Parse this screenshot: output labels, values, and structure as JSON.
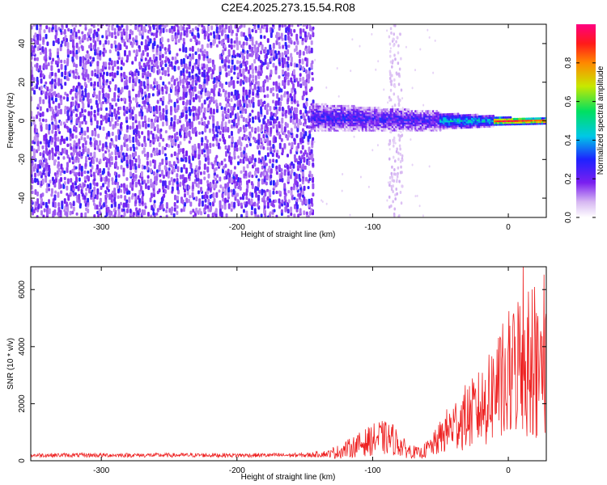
{
  "chart_data": [
    {
      "type": "heatmap",
      "title": "C2E4.2025.273.15.54.R08",
      "xlabel": "Height of straight line (km)",
      "ylabel": "Frequency (Hz)",
      "xlim": [
        -352,
        28
      ],
      "ylim": [
        -50,
        50
      ],
      "xticks": [
        -300,
        -200,
        -100,
        0
      ],
      "xtick_labels": [
        "-300",
        "-200",
        "-100",
        "0"
      ],
      "yticks": [
        -40,
        -20,
        0,
        20,
        40
      ],
      "ytick_labels": [
        "-40",
        "-20",
        "0",
        "20",
        "40"
      ],
      "colorbar": {
        "label": "Normalized spectral amplitude",
        "range": [
          0,
          1
        ],
        "ticks": [
          0.0,
          0.2,
          0.4,
          0.6,
          0.8
        ],
        "tick_labels": [
          "0.0",
          "0.2",
          "0.4",
          "0.6",
          "0.8"
        ]
      },
      "regions": [
        {
          "name": "noise",
          "x_range": [
            -352,
            -145
          ],
          "freq_range": [
            -50,
            50
          ],
          "amplitude_level": 0.1
        },
        {
          "name": "transition-band",
          "x_range": [
            -145,
            -50
          ],
          "freq_center": 2,
          "freq_halfwidth": 7,
          "amplitude_level": 0.25
        },
        {
          "name": "narrowing-band",
          "x_range": [
            -50,
            -10
          ],
          "freq_center": 0,
          "freq_halfwidth": 4,
          "amplitude_level": 0.45
        },
        {
          "name": "strong-signal",
          "x_range": [
            -10,
            28
          ],
          "freq_center": 0,
          "freq_halfwidth": 2,
          "amplitude_level": 0.95
        },
        {
          "name": "vertical-streak",
          "x_range": [
            -88,
            -78
          ],
          "freq_range": [
            -50,
            50
          ],
          "amplitude_level": 0.05
        }
      ]
    },
    {
      "type": "line",
      "series": [
        {
          "name": "SNR",
          "color": "#ee2222"
        }
      ],
      "xlabel": "Height of straight line (km)",
      "ylabel": "SNR (10 * v/v)",
      "xlim": [
        -352,
        28
      ],
      "ylim": [
        0,
        6800
      ],
      "xticks": [
        -300,
        -200,
        -100,
        0
      ],
      "xtick_labels": [
        "-300",
        "-200",
        "-100",
        "0"
      ],
      "yticks": [
        0,
        2000,
        4000,
        6000
      ],
      "ytick_labels": [
        "0",
        "2000",
        "4000",
        "6000"
      ],
      "envelope": {
        "x": [
          -352,
          -150,
          -125,
          -110,
          -95,
          -85,
          -75,
          -65,
          -55,
          -45,
          -35,
          -25,
          -15,
          -8,
          -2,
          5,
          10,
          15,
          20,
          28
        ],
        "y": [
          250,
          250,
          500,
          900,
          1300,
          1200,
          600,
          400,
          900,
          1700,
          2300,
          2700,
          3300,
          4300,
          3600,
          5300,
          5800,
          4700,
          4900,
          5300
        ]
      }
    }
  ]
}
